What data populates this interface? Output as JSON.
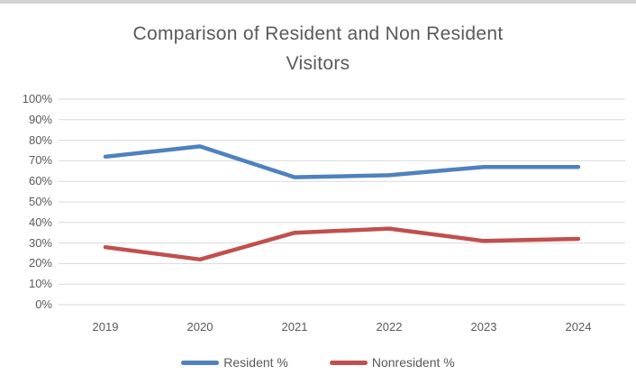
{
  "page": {
    "background": "#ffffff",
    "top_strip_color": "#d2d2d2"
  },
  "chart_data": {
    "type": "line",
    "title": "Comparison of Resident and Non Resident Visitors",
    "title_lines": [
      "Comparison of Resident and Non Resident",
      "Visitors"
    ],
    "categories": [
      "2019",
      "2020",
      "2021",
      "2022",
      "2023",
      "2024"
    ],
    "series": [
      {
        "name": "Resident %",
        "color": "#4F81BD",
        "values": [
          72,
          77,
          62,
          63,
          67,
          67
        ]
      },
      {
        "name": "Nonresident %",
        "color": "#C0504D",
        "values": [
          28,
          22,
          35,
          37,
          31,
          32
        ]
      }
    ],
    "xlabel": "",
    "ylabel": "",
    "ylim": [
      0,
      100
    ],
    "ytick_step": 10,
    "ytick_labels": [
      "0%",
      "10%",
      "20%",
      "30%",
      "40%",
      "50%",
      "60%",
      "70%",
      "80%",
      "90%",
      "100%"
    ],
    "grid": true,
    "legend_position": "bottom",
    "colors": {
      "gridline": "#D9D9D9",
      "axis_text": "#595959",
      "title_text": "#595959"
    }
  }
}
